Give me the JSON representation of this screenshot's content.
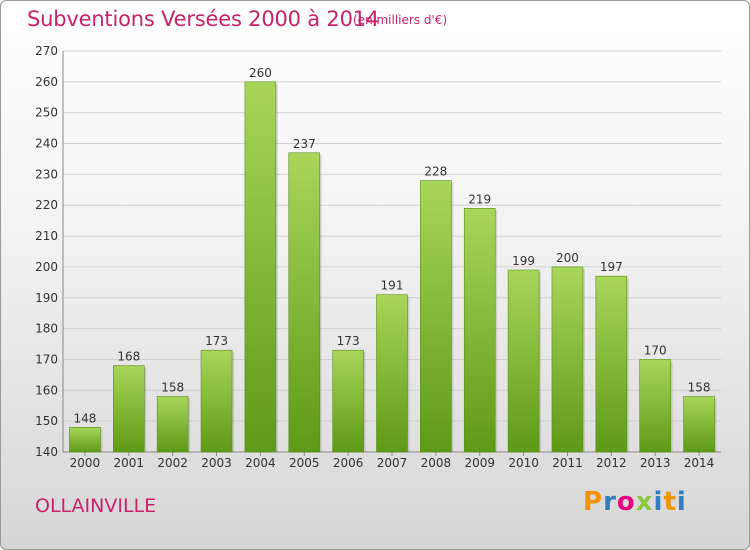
{
  "title": "Subventions Versées 2000 à 2014",
  "subtitle": "(en milliers d'€)",
  "city": "OLLAINVILLE",
  "logo": {
    "letters": [
      "P",
      "r",
      "o",
      "x",
      "i",
      "t",
      "i"
    ],
    "colors": [
      "#f39200",
      "#2f7fc1",
      "#e6007e",
      "#8dc63f",
      "#2f7fc1",
      "#f39200",
      "#2f7fc1"
    ]
  },
  "colors": {
    "bar_top": "#a8d65a",
    "bar_bottom": "#5e9a16",
    "grid": "#d0d0d0",
    "text": "#c8236a"
  },
  "chart_data": {
    "type": "bar",
    "categories": [
      "2000",
      "2001",
      "2002",
      "2003",
      "2004",
      "2005",
      "2006",
      "2007",
      "2008",
      "2009",
      "2010",
      "2011",
      "2012",
      "2013",
      "2014"
    ],
    "values": [
      148,
      168,
      158,
      173,
      260,
      237,
      173,
      191,
      228,
      219,
      199,
      200,
      197,
      170,
      158
    ],
    "ylim": [
      140,
      270
    ],
    "yticks": [
      140,
      150,
      160,
      170,
      180,
      190,
      200,
      210,
      220,
      230,
      240,
      250,
      260,
      270
    ],
    "grid": true,
    "data_labels": true
  }
}
